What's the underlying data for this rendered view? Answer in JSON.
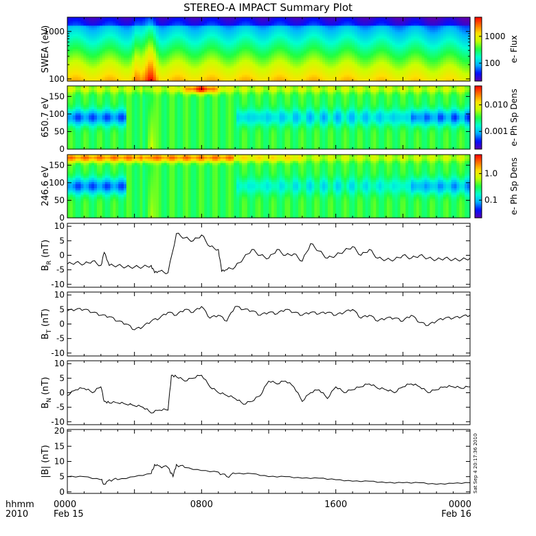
{
  "title": "STEREO-A IMPACT Summary Plot",
  "footer": {
    "time_label": "hhmm",
    "year_label": "2010",
    "date_start": "Feb 15",
    "date_end": "Feb 16"
  },
  "stamp": "Sat Sep  4 20:17:36 2010",
  "colors": {
    "line": "#000000",
    "colormap": [
      "#5a00b0",
      "#0010ff",
      "#00b4ff",
      "#00ffd0",
      "#20ff40",
      "#c8ff00",
      "#ffe000",
      "#ff7000",
      "#ff0000"
    ]
  },
  "chart_data": [
    {
      "type": "heatmap",
      "name": "swea",
      "ylabel": "SWEA (eV)",
      "yscale": "log",
      "ylim": [
        90,
        2000
      ],
      "yticks": [
        "1000",
        "100"
      ],
      "colorbar_label": "e- Flux",
      "colorbar_ticks": [
        "1000",
        "100"
      ],
      "description_band": "flux highest at low energy, enhanced near 0430-0600 UT"
    },
    {
      "type": "heatmap",
      "name": "pad650",
      "ylabel": "650.7 eV",
      "ylim": [
        0,
        180
      ],
      "yticks": [
        "150",
        "100",
        "50",
        "0"
      ],
      "colorbar_label": "e- Ph Sp Dens",
      "colorbar_ticks": [
        "0.010",
        "0.001"
      ]
    },
    {
      "type": "heatmap",
      "name": "pad246",
      "ylabel": "246.6 eV",
      "ylim": [
        0,
        180
      ],
      "yticks": [
        "150",
        "100",
        "50",
        "0"
      ],
      "colorbar_label": "e- Ph Sp Dens",
      "colorbar_ticks": [
        "1.0",
        "0.1"
      ]
    },
    {
      "type": "line",
      "name": "br",
      "ylabel_main": "B",
      "ylabel_sub": "R",
      "ylabel_unit": " (nT)",
      "ylim": [
        -11,
        11
      ],
      "yticks": [
        "10",
        "5",
        "0",
        "-5",
        "-10"
      ],
      "x": [
        0,
        0.5,
        1,
        1.5,
        2,
        2.2,
        2.5,
        3,
        3.5,
        4,
        4.5,
        5,
        5.2,
        5.5,
        6,
        6.5,
        7,
        7.5,
        8,
        8.5,
        9,
        9.2,
        9.5,
        10,
        10.5,
        11,
        11.5,
        12,
        12.5,
        13,
        13.5,
        14,
        14.5,
        15,
        15.5,
        16,
        16.5,
        17,
        17.5,
        18,
        18.5,
        19,
        19.5,
        20,
        20.5,
        21,
        21.5,
        22,
        22.5,
        23,
        23.5,
        24
      ],
      "y": [
        -3,
        -2.5,
        -3,
        -2,
        -3.5,
        1,
        -3.5,
        -3.5,
        -4,
        -4,
        -4,
        -3.5,
        -6,
        -5.5,
        -6,
        7.5,
        6,
        5,
        7,
        3,
        2,
        -5.5,
        -5,
        -4,
        -1,
        2,
        0,
        -1,
        2,
        0,
        0.5,
        -2,
        4,
        1.5,
        -1,
        0,
        1.5,
        3,
        0,
        2,
        -1,
        -1.5,
        -1.5,
        0,
        -1,
        0,
        -1,
        -1.5,
        -1,
        -1.5,
        -1.5,
        -1
      ]
    },
    {
      "type": "line",
      "name": "bt",
      "ylabel_main": "B",
      "ylabel_sub": "T",
      "ylabel_unit": " (nT)",
      "ylim": [
        -11,
        11
      ],
      "yticks": [
        "10",
        "5",
        "0",
        "-5",
        "-10"
      ],
      "x": [
        0,
        0.5,
        1,
        1.5,
        2,
        2.5,
        3,
        3.5,
        4,
        4.5,
        5,
        5.5,
        6,
        6.5,
        7,
        7.5,
        8,
        8.5,
        9,
        9.5,
        10,
        10.5,
        11,
        11.5,
        12,
        12.5,
        13,
        13.5,
        14,
        14.5,
        15,
        15.5,
        16,
        16.5,
        17,
        17.5,
        18,
        18.5,
        19,
        19.5,
        20,
        20.5,
        21,
        21.5,
        22,
        22.5,
        23,
        23.5,
        24
      ],
      "y": [
        4.5,
        5,
        5,
        4,
        3,
        2.5,
        1,
        0,
        -2,
        -1,
        1,
        2,
        4,
        3,
        5,
        4,
        6,
        2,
        3,
        1,
        6,
        5,
        4.5,
        3,
        4,
        3.5,
        5,
        4,
        3,
        4,
        3.5,
        4,
        3,
        4,
        5,
        2,
        3,
        1,
        2,
        2,
        1,
        3,
        0.5,
        -0.5,
        1,
        2,
        2,
        2.5,
        3
      ]
    },
    {
      "type": "line",
      "name": "bn",
      "ylabel_main": "B",
      "ylabel_sub": "N",
      "ylabel_unit": " (nT)",
      "ylim": [
        -11,
        11
      ],
      "yticks": [
        "10",
        "5",
        "0",
        "-5",
        "-10"
      ],
      "x": [
        0,
        0.5,
        1,
        1.5,
        2,
        2.2,
        2.5,
        3,
        3.5,
        4,
        4.5,
        5,
        5.5,
        6,
        6.2,
        6.5,
        7,
        7.5,
        8,
        8.5,
        9,
        9.5,
        10,
        10.5,
        11,
        11.5,
        12,
        12.5,
        13,
        13.5,
        14,
        14.5,
        15,
        15.5,
        16,
        16.5,
        17,
        17.5,
        18,
        18.5,
        19,
        19.5,
        20,
        20.5,
        21,
        21.5,
        22,
        22.5,
        23,
        23.5,
        24
      ],
      "y": [
        -1,
        1,
        1.5,
        0,
        2,
        -3,
        -3.5,
        -3.5,
        -4,
        -4.5,
        -5,
        -7,
        -6,
        -6,
        6,
        5.5,
        4,
        5,
        6,
        2,
        0,
        -1,
        -2,
        -4,
        -3,
        -1,
        4,
        3,
        4,
        2,
        -3,
        0,
        1,
        -2,
        2,
        0,
        1,
        2,
        3,
        1.5,
        1,
        0,
        2,
        3,
        2,
        0,
        1,
        2,
        2,
        1.5,
        2
      ]
    },
    {
      "type": "line",
      "name": "bmag",
      "ylabel_main": "|B| (nT)",
      "ylim": [
        -0.5,
        20.5
      ],
      "yticks": [
        "20",
        "15",
        "10",
        "5",
        "0"
      ],
      "x": [
        0,
        1,
        2,
        2.2,
        2.5,
        3,
        4,
        5,
        5.2,
        5.5,
        6,
        6.3,
        6.5,
        7,
        8,
        9,
        9.5,
        10,
        11,
        12,
        13,
        14,
        15,
        16,
        17,
        18,
        19,
        20,
        21,
        22,
        23,
        24
      ],
      "y": [
        5,
        5,
        4,
        2.5,
        4,
        4,
        5,
        6,
        9,
        8.5,
        8,
        5,
        9,
        8,
        7,
        6.5,
        5,
        6,
        6,
        5,
        5,
        4.5,
        4.5,
        4,
        3.5,
        3.5,
        3,
        3,
        3,
        2.5,
        2.8,
        3
      ]
    }
  ],
  "xaxis": {
    "range": [
      0,
      24
    ],
    "major_labels": [
      "0000",
      "0800",
      "1600",
      "0000"
    ]
  }
}
